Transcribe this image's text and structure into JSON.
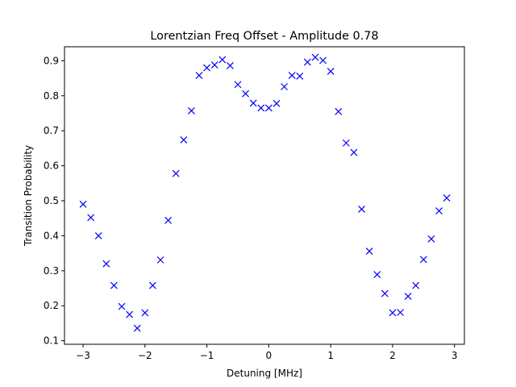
{
  "chart_data": {
    "type": "scatter",
    "title": "Lorentzian Freq Offset - Amplitude 0.78",
    "xlabel": "Detuning [MHz]",
    "ylabel": "Transition Probability",
    "xlim": [
      -3.3,
      3.16
    ],
    "ylim": [
      0.09,
      0.94
    ],
    "xticks": [
      -3,
      -2,
      -1,
      0,
      1,
      2,
      3
    ],
    "xtick_labels": [
      "−3",
      "−2",
      "−1",
      "0",
      "1",
      "2",
      "3"
    ],
    "yticks": [
      0.1,
      0.2,
      0.3,
      0.4,
      0.5,
      0.6,
      0.7,
      0.8,
      0.9
    ],
    "ytick_labels": [
      "0.1",
      "0.2",
      "0.3",
      "0.4",
      "0.5",
      "0.6",
      "0.7",
      "0.8",
      "0.9"
    ],
    "grid": false,
    "marker": "x",
    "color": "#0000ff",
    "series": [
      {
        "x": [
          -3.0,
          -2.875,
          -2.75,
          -2.625,
          -2.5,
          -2.375,
          -2.25,
          -2.125,
          -2.0,
          -1.875,
          -1.75,
          -1.625,
          -1.5,
          -1.375,
          -1.25,
          -1.125,
          -1.0,
          -0.875,
          -0.75,
          -0.625,
          -0.5,
          -0.375,
          -0.25,
          -0.125,
          0.0,
          0.125,
          0.25,
          0.375,
          0.5,
          0.625,
          0.75,
          0.875,
          1.0,
          1.125,
          1.25,
          1.375,
          1.5,
          1.625,
          1.75,
          1.875,
          2.0,
          2.125,
          2.25,
          2.375,
          2.5,
          2.625,
          2.75,
          2.875
        ],
        "y": [
          0.49,
          0.452,
          0.4,
          0.32,
          0.258,
          0.198,
          0.175,
          0.136,
          0.18,
          0.258,
          0.331,
          0.444,
          0.578,
          0.674,
          0.757,
          0.858,
          0.88,
          0.888,
          0.903,
          0.886,
          0.832,
          0.806,
          0.779,
          0.765,
          0.765,
          0.778,
          0.826,
          0.858,
          0.856,
          0.896,
          0.91,
          0.901,
          0.87,
          0.755,
          0.665,
          0.638,
          0.476,
          0.356,
          0.289,
          0.235,
          0.18,
          0.181,
          0.227,
          0.258,
          0.332,
          0.391,
          0.471,
          0.508
        ]
      }
    ]
  }
}
